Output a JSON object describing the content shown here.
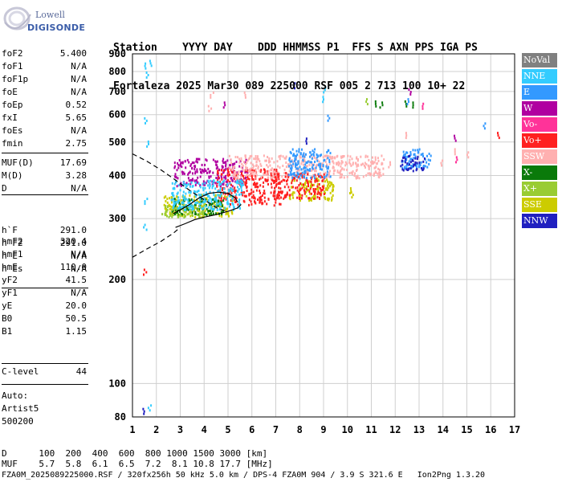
{
  "logo": {
    "line1": "Lowell",
    "line2": "DIGISONDE"
  },
  "header": {
    "labels": "Station    YYYY DAY    DDD HHMMSS P1  FFS S AXN PPS IGA PS",
    "values": "Fortaleza 2025 Mar30 089 225000 RSF 005 2 713 100 10+ 22"
  },
  "params": {
    "group1": [
      {
        "name": "foF2",
        "value": "5.400"
      },
      {
        "name": "foF1",
        "value": "N/A"
      },
      {
        "name": "foF1p",
        "value": "N/A"
      },
      {
        "name": "foE",
        "value": "N/A"
      },
      {
        "name": "foEp",
        "value": "0.52"
      },
      {
        "name": "fxI",
        "value": "5.65"
      },
      {
        "name": "foEs",
        "value": "N/A"
      },
      {
        "name": "fmin",
        "value": "2.75"
      }
    ],
    "group2": [
      {
        "name": "MUF(D)",
        "value": "17.69"
      },
      {
        "name": "M(D)",
        "value": "3.28"
      },
      {
        "name": "D",
        "value": "N/A"
      }
    ],
    "group3": [
      {
        "name": "h`F",
        "value": "291.0"
      },
      {
        "name": "h`F2",
        "value": "291.0"
      },
      {
        "name": "h`E",
        "value": "N/A"
      },
      {
        "name": "h`Es",
        "value": "N/A"
      }
    ],
    "group4": [
      {
        "name": "hmF2",
        "value": "320.4"
      },
      {
        "name": "hmF1",
        "value": "N/A"
      },
      {
        "name": "hmE",
        "value": "110.0"
      },
      {
        "name": "yF2",
        "value": "41.5"
      },
      {
        "name": "yF1",
        "value": "N/A"
      },
      {
        "name": "yE",
        "value": "20.0"
      },
      {
        "name": "B0",
        "value": "50.5"
      },
      {
        "name": "B1",
        "value": "1.15"
      }
    ],
    "group5": [
      {
        "name": "C-level",
        "value": "44"
      }
    ],
    "auto": [
      "Auto:",
      "Artist5",
      "500200"
    ]
  },
  "legend": [
    {
      "label": "NoVal",
      "color": "#808080"
    },
    {
      "label": "NNE",
      "color": "#33ccff"
    },
    {
      "label": "E",
      "color": "#3399ff"
    },
    {
      "label": "W",
      "color": "#b000a0"
    },
    {
      "label": "Vo-",
      "color": "#ff3399"
    },
    {
      "label": "Vo+",
      "color": "#ff2020"
    },
    {
      "label": "SSW",
      "color": "#ffb0b0"
    },
    {
      "label": "X-",
      "color": "#0a7a0a"
    },
    {
      "label": "X+",
      "color": "#99cc33"
    },
    {
      "label": "SSE",
      "color": "#cccc00"
    },
    {
      "label": "NNW",
      "color": "#2020c0"
    }
  ],
  "footer": {
    "line1": "D      100  200  400  600  800 1000 1500 3000 [km]",
    "line2": "MUF    5.7  5.8  6.1  6.5  7.2  8.1 10.8 17.7 [MHz]",
    "line3": "FZA0M_2025089225000.RSF / 320fx256h 50 kHz 5.0 km / DPS-4 FZA0M 904 / 3.9 S 321.6 E   Ion2Png 1.3.20"
  },
  "chart_data": {
    "type": "scatter",
    "xlim": [
      1,
      17
    ],
    "ylim": [
      80,
      900
    ],
    "x_ticks": [
      "1",
      "2",
      "3",
      "4",
      "5",
      "6",
      "7",
      "8",
      "9",
      "10",
      "11",
      "12",
      "13",
      "14",
      "15",
      "16",
      "17"
    ],
    "y_ticks": [
      "80",
      "100",
      "200",
      "300",
      "400",
      "500",
      "600",
      "700",
      "800",
      "900"
    ],
    "y_scale": "log",
    "grid": true,
    "trace_solid_upper": [
      [
        2.7,
        310
      ],
      [
        3.0,
        318
      ],
      [
        3.4,
        330
      ],
      [
        3.8,
        345
      ],
      [
        4.2,
        355
      ],
      [
        4.6,
        358
      ],
      [
        5.0,
        355
      ],
      [
        5.3,
        345
      ],
      [
        5.4,
        335
      ]
    ],
    "trace_solid_lower": [
      [
        2.8,
        283
      ],
      [
        3.2,
        290
      ],
      [
        3.6,
        298
      ],
      [
        4.0,
        303
      ],
      [
        4.5,
        308
      ],
      [
        5.0,
        315
      ],
      [
        5.4,
        322
      ],
      [
        5.55,
        330
      ]
    ],
    "trace_dashed_upper": [
      [
        1.0,
        462
      ],
      [
        1.6,
        440
      ],
      [
        2.2,
        415
      ],
      [
        2.8,
        388
      ],
      [
        3.4,
        362
      ],
      [
        4.0,
        340
      ],
      [
        4.6,
        320
      ],
      [
        5.0,
        315
      ]
    ],
    "trace_dashed_lower": [
      [
        1.0,
        232
      ],
      [
        1.6,
        245
      ],
      [
        2.2,
        258
      ],
      [
        2.7,
        272
      ],
      [
        3.0,
        283
      ]
    ],
    "echo_regions": [
      {
        "color": "#b000a0",
        "x": [
          2.7,
          5.8
        ],
        "y": [
          375,
          450
        ]
      },
      {
        "color": "#ff2020",
        "x": [
          4.5,
          7.2
        ],
        "y": [
          330,
          420
        ]
      },
      {
        "color": "#ffb0b0",
        "x": [
          5.0,
          11.5
        ],
        "y": [
          395,
          460
        ]
      },
      {
        "color": "#cccc00",
        "x": [
          2.3,
          5.2
        ],
        "y": [
          305,
          355
        ]
      },
      {
        "color": "#0a7a0a",
        "x": [
          2.6,
          4.8
        ],
        "y": [
          310,
          345
        ]
      },
      {
        "color": "#99cc33",
        "x": [
          2.2,
          4.0
        ],
        "y": [
          305,
          330
        ]
      },
      {
        "color": "#cccc00",
        "x": [
          7.5,
          9.4
        ],
        "y": [
          340,
          395
        ]
      },
      {
        "color": "#33ccff",
        "x": [
          2.6,
          5.6
        ],
        "y": [
          320,
          390
        ]
      },
      {
        "color": "#3399ff",
        "x": [
          12.2,
          13.5
        ],
        "y": [
          420,
          480
        ]
      },
      {
        "color": "#2020c0",
        "x": [
          12.2,
          13.2
        ],
        "y": [
          415,
          460
        ]
      },
      {
        "color": "#ff2020",
        "x": [
          6.8,
          9.0
        ],
        "y": [
          345,
          410
        ]
      },
      {
        "color": "#3399ff",
        "x": [
          7.5,
          9.3
        ],
        "y": [
          395,
          480
        ]
      }
    ],
    "echo_spots": [
      {
        "color": "#33ccff",
        "x": 1.45,
        "y": 850
      },
      {
        "color": "#33ccff",
        "x": 1.6,
        "y": 800
      },
      {
        "color": "#33ccff",
        "x": 1.75,
        "y": 865
      },
      {
        "color": "#33ccff",
        "x": 1.5,
        "y": 590
      },
      {
        "color": "#33ccff",
        "x": 1.6,
        "y": 505
      },
      {
        "color": "#33ccff",
        "x": 1.55,
        "y": 345
      },
      {
        "color": "#33ccff",
        "x": 1.5,
        "y": 290
      },
      {
        "color": "#ff2020",
        "x": 1.5,
        "y": 215
      },
      {
        "color": "#2020c0",
        "x": 1.4,
        "y": 85
      },
      {
        "color": "#33ccff",
        "x": 1.7,
        "y": 87
      },
      {
        "color": "#ffb0b0",
        "x": 4.3,
        "y": 700
      },
      {
        "color": "#ffb0b0",
        "x": 4.2,
        "y": 640
      },
      {
        "color": "#b000a0",
        "x": 4.8,
        "y": 655
      },
      {
        "color": "#ffb0b0",
        "x": 5.7,
        "y": 700
      },
      {
        "color": "#2020c0",
        "x": 7.7,
        "y": 745
      },
      {
        "color": "#33ccff",
        "x": 9.0,
        "y": 725
      },
      {
        "color": "#33ccff",
        "x": 9.0,
        "y": 680
      },
      {
        "color": "#3399ff",
        "x": 9.2,
        "y": 600
      },
      {
        "color": "#99cc33",
        "x": 10.8,
        "y": 670
      },
      {
        "color": "#0a7a0a",
        "x": 11.1,
        "y": 660
      },
      {
        "color": "#0a7a0a",
        "x": 11.4,
        "y": 655
      },
      {
        "color": "#0a7a0a",
        "x": 12.4,
        "y": 660
      },
      {
        "color": "#0a7a0a",
        "x": 12.7,
        "y": 655
      },
      {
        "color": "#b000a0",
        "x": 12.6,
        "y": 715
      },
      {
        "color": "#3399ff",
        "x": 12.5,
        "y": 670
      },
      {
        "color": "#ff3399",
        "x": 13.1,
        "y": 650
      },
      {
        "color": "#3399ff",
        "x": 15.7,
        "y": 570
      },
      {
        "color": "#ff2020",
        "x": 16.3,
        "y": 535
      },
      {
        "color": "#b000a0",
        "x": 14.5,
        "y": 525
      },
      {
        "color": "#ffb0b0",
        "x": 12.4,
        "y": 535
      },
      {
        "color": "#2020c0",
        "x": 8.2,
        "y": 515
      },
      {
        "color": "#3399ff",
        "x": 8.0,
        "y": 480
      },
      {
        "color": "#ffb0b0",
        "x": 14.5,
        "y": 480
      },
      {
        "color": "#ffb0b0",
        "x": 15.0,
        "y": 470
      },
      {
        "color": "#ff3399",
        "x": 14.5,
        "y": 455
      },
      {
        "color": "#ffb0b0",
        "x": 11.7,
        "y": 440
      },
      {
        "color": "#ffb0b0",
        "x": 13.9,
        "y": 445
      },
      {
        "color": "#cccc00",
        "x": 10.1,
        "y": 370
      },
      {
        "color": "#cccc00",
        "x": 10.2,
        "y": 360
      },
      {
        "color": "#ffb0b0",
        "x": 9.7,
        "y": 420
      }
    ]
  }
}
